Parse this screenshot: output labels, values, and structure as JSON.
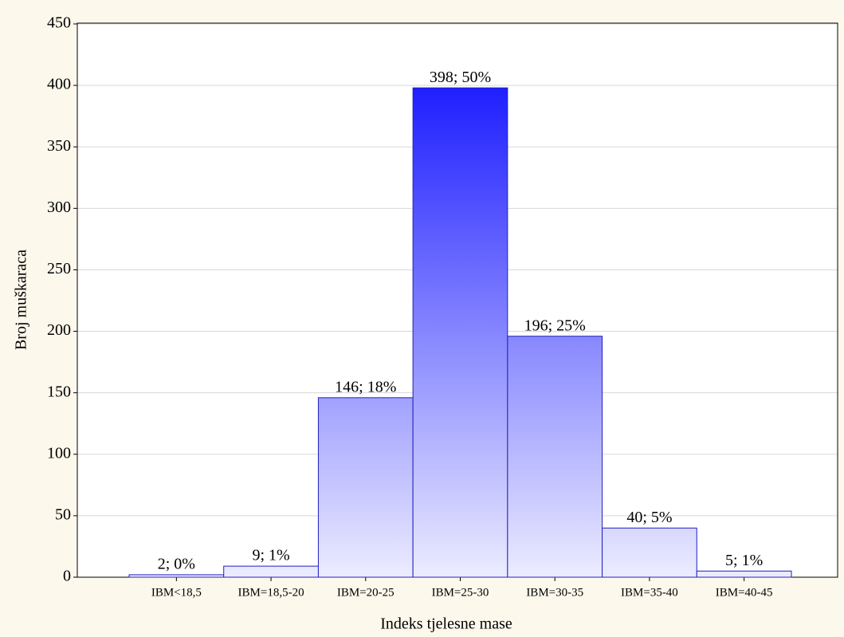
{
  "chart_data": {
    "type": "bar",
    "x_label": "Indeks tjelesne mase",
    "y_label": "Broj muškaraca",
    "categories": [
      "IBM<18,5",
      "IBM=18,5-20",
      "IBM=20-25",
      "IBM=25-30",
      "IBM=30-35",
      "IBM=35-40",
      "IBM=40-45"
    ],
    "values": [
      2,
      9,
      146,
      398,
      196,
      40,
      5
    ],
    "value_labels": [
      "2; 0%",
      "9; 1%",
      "146; 18%",
      "398; 50%",
      "196; 25%",
      "40; 5%",
      "5; 1%"
    ],
    "color": "#1f1fff",
    "ylim": [
      0,
      450
    ],
    "yticks": [
      0,
      50,
      100,
      150,
      200,
      250,
      300,
      350,
      400,
      450
    ],
    "grid": true
  }
}
